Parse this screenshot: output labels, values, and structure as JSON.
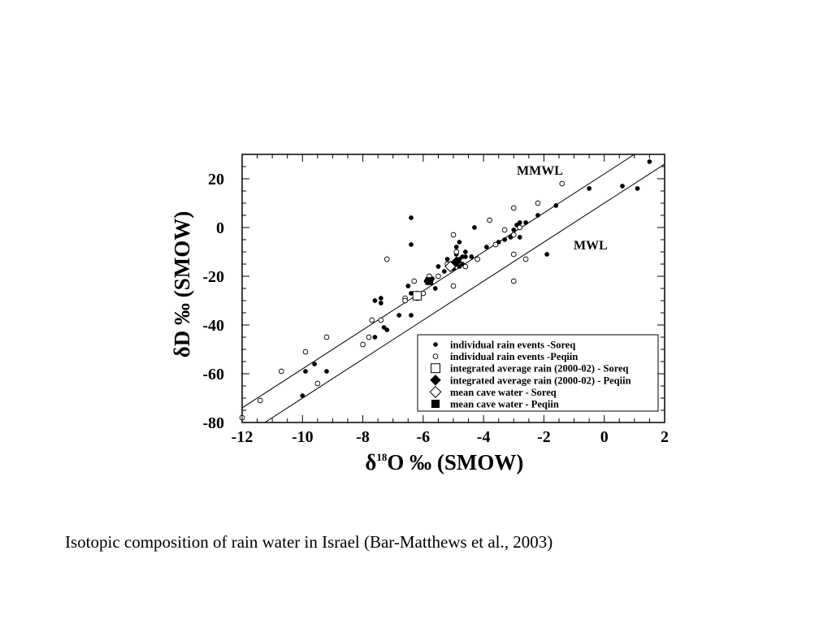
{
  "caption": "Isotopic composition of rain water in Israel (Bar-Matthews et al., 2003)",
  "chart_data": {
    "type": "scatter",
    "xlabel": "δ18O ‰ (SMOW)",
    "ylabel": "δD ‰ (SMOW)",
    "xlim": [
      -12,
      2
    ],
    "ylim": [
      -80,
      30
    ],
    "x_ticks": [
      -12,
      -10,
      -8,
      -6,
      -4,
      -2,
      0,
      2
    ],
    "y_ticks": [
      -80,
      -60,
      -40,
      -20,
      0,
      20
    ],
    "grid": false,
    "legend_position": "bottom-right",
    "lines": [
      {
        "name": "MMWL",
        "slope": 8,
        "intercept": 22,
        "x_range": [
          -12,
          1.5
        ]
      },
      {
        "name": "MWL",
        "slope": 8,
        "intercept": 10,
        "x_range": [
          -11,
          2
        ]
      }
    ],
    "series": [
      {
        "name": "individual rain events -Soreq",
        "marker": "filled-circle",
        "points": [
          [
            -10.0,
            -69
          ],
          [
            -9.9,
            -59
          ],
          [
            -9.6,
            -56
          ],
          [
            -9.2,
            -59
          ],
          [
            -7.6,
            -45
          ],
          [
            -7.6,
            -30
          ],
          [
            -7.4,
            -31
          ],
          [
            -7.4,
            -29
          ],
          [
            -7.3,
            -41
          ],
          [
            -7.2,
            -42
          ],
          [
            -6.8,
            -36
          ],
          [
            -6.5,
            -24
          ],
          [
            -6.4,
            -36
          ],
          [
            -6.4,
            -27
          ],
          [
            -6.4,
            -7
          ],
          [
            -6.4,
            4
          ],
          [
            -6.2,
            -27
          ],
          [
            -5.9,
            -22
          ],
          [
            -5.7,
            -21
          ],
          [
            -5.6,
            -25
          ],
          [
            -5.5,
            -16
          ],
          [
            -5.3,
            -18
          ],
          [
            -5.2,
            -13
          ],
          [
            -5.1,
            -15
          ],
          [
            -5.0,
            -17
          ],
          [
            -4.9,
            -14
          ],
          [
            -4.9,
            -11
          ],
          [
            -4.9,
            -8
          ],
          [
            -4.8,
            -16
          ],
          [
            -4.8,
            -13
          ],
          [
            -4.7,
            -12
          ],
          [
            -4.7,
            -15
          ],
          [
            -4.6,
            -12
          ],
          [
            -4.8,
            -6
          ],
          [
            -4.6,
            -10
          ],
          [
            -4.4,
            -12
          ],
          [
            -4.3,
            0
          ],
          [
            -3.9,
            -8
          ],
          [
            -3.5,
            -6
          ],
          [
            -3.3,
            -5
          ],
          [
            -3.1,
            -4
          ],
          [
            -3.0,
            -1
          ],
          [
            -2.9,
            1
          ],
          [
            -2.8,
            -4
          ],
          [
            -2.8,
            2
          ],
          [
            -2.6,
            2
          ],
          [
            -2.2,
            5
          ],
          [
            -1.6,
            9
          ],
          [
            -1.9,
            -11
          ],
          [
            -0.5,
            16
          ],
          [
            0.6,
            17
          ],
          [
            1.1,
            16
          ],
          [
            1.5,
            27
          ]
        ]
      },
      {
        "name": "individual rain events -Peqiin",
        "marker": "open-circle",
        "points": [
          [
            -12.0,
            -78
          ],
          [
            -11.4,
            -71
          ],
          [
            -10.7,
            -59
          ],
          [
            -9.9,
            -51
          ],
          [
            -9.5,
            -64
          ],
          [
            -9.2,
            -45
          ],
          [
            -8.0,
            -48
          ],
          [
            -7.7,
            -38
          ],
          [
            -7.8,
            -45
          ],
          [
            -7.4,
            -38
          ],
          [
            -7.2,
            -13
          ],
          [
            -6.6,
            -29
          ],
          [
            -6.6,
            -30
          ],
          [
            -6.3,
            -22
          ],
          [
            -6.2,
            -29
          ],
          [
            -6.0,
            -27
          ],
          [
            -5.8,
            -20
          ],
          [
            -5.5,
            -20
          ],
          [
            -5.2,
            -15
          ],
          [
            -5.0,
            -24
          ],
          [
            -5.0,
            -3
          ],
          [
            -4.9,
            -10
          ],
          [
            -4.6,
            -16
          ],
          [
            -4.2,
            -13
          ],
          [
            -3.8,
            3
          ],
          [
            -3.6,
            -7
          ],
          [
            -3.3,
            -1
          ],
          [
            -3.0,
            8
          ],
          [
            -3.0,
            -3
          ],
          [
            -3.0,
            -11
          ],
          [
            -3.0,
            -22
          ],
          [
            -2.8,
            0
          ],
          [
            -2.6,
            -13
          ],
          [
            -2.2,
            10
          ],
          [
            -1.4,
            18
          ]
        ]
      },
      {
        "name": "integrated average rain (2000-02) - Soreq",
        "marker": "open-square",
        "points": [
          [
            -6.2,
            -28
          ]
        ]
      },
      {
        "name": "integrated average rain (2000-02) - Peqiin",
        "marker": "filled-diamond",
        "points": [
          [
            -4.9,
            -14
          ]
        ]
      },
      {
        "name": "mean cave water - Soreq",
        "marker": "open-diamond",
        "points": [
          [
            -5.1,
            -16
          ]
        ]
      },
      {
        "name": "mean cave water - Peqiin",
        "marker": "filled-square",
        "points": [
          [
            -5.8,
            -22
          ]
        ]
      }
    ]
  }
}
